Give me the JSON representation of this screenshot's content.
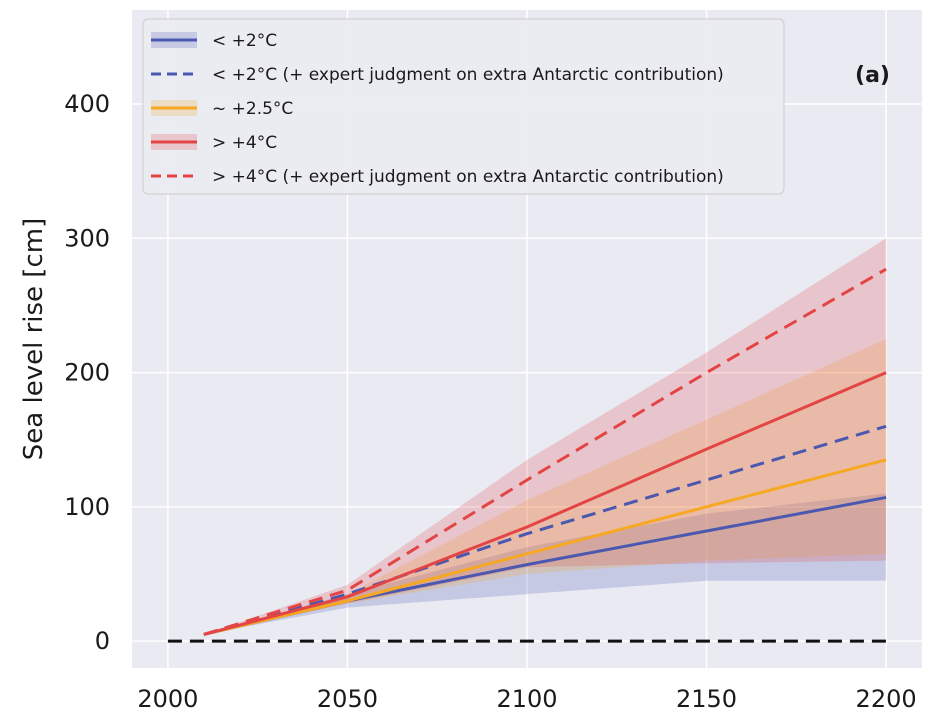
{
  "chart_data": {
    "type": "line",
    "panel_label": "(a)",
    "ylabel": "Sea level rise [cm]",
    "xlabel": "",
    "xlim": [
      1990,
      2210
    ],
    "ylim": [
      -20,
      470
    ],
    "xticks": [
      2000,
      2050,
      2100,
      2150,
      2200
    ],
    "yticks": [
      0,
      100,
      200,
      300,
      400
    ],
    "grid": true,
    "legend_position": "top-left",
    "x": [
      2010,
      2050,
      2100,
      2150,
      2200
    ],
    "series": [
      {
        "name": "< +2°C",
        "color": "#4a58b0",
        "style": "solid",
        "band": true,
        "values": [
          5,
          30,
          57,
          82,
          107
        ],
        "lower": [
          5,
          25,
          35,
          45,
          45
        ],
        "upper": [
          5,
          35,
          70,
          95,
          110
        ]
      },
      {
        "name": "< +2°C (+ expert judgment on extra Antarctic contribution)",
        "color": "#4a58b0",
        "style": "dashed",
        "band": false,
        "values": [
          5,
          35,
          80,
          120,
          160
        ]
      },
      {
        "name": "~ +2.5°C",
        "color": "#f7a823",
        "style": "solid",
        "band": true,
        "values": [
          5,
          30,
          65,
          100,
          135
        ],
        "lower": [
          5,
          28,
          50,
          60,
          65
        ],
        "upper": [
          5,
          35,
          105,
          165,
          225
        ]
      },
      {
        "name": "> +4°C",
        "color": "#e34545",
        "style": "solid",
        "band": true,
        "values": [
          5,
          33,
          85,
          143,
          200
        ],
        "lower": [
          5,
          28,
          55,
          58,
          60
        ],
        "upper": [
          5,
          42,
          135,
          215,
          300
        ]
      },
      {
        "name": "> +4°C (+ expert judgment on extra Antarctic contribution)",
        "color": "#e34545",
        "style": "dashed",
        "band": false,
        "values": [
          5,
          38,
          120,
          200,
          277
        ]
      }
    ],
    "reference_line": {
      "y": 0,
      "color": "#111111",
      "style": "dashed"
    },
    "colors": {
      "background": "#eaeaf2",
      "grid": "#ffffff"
    }
  }
}
